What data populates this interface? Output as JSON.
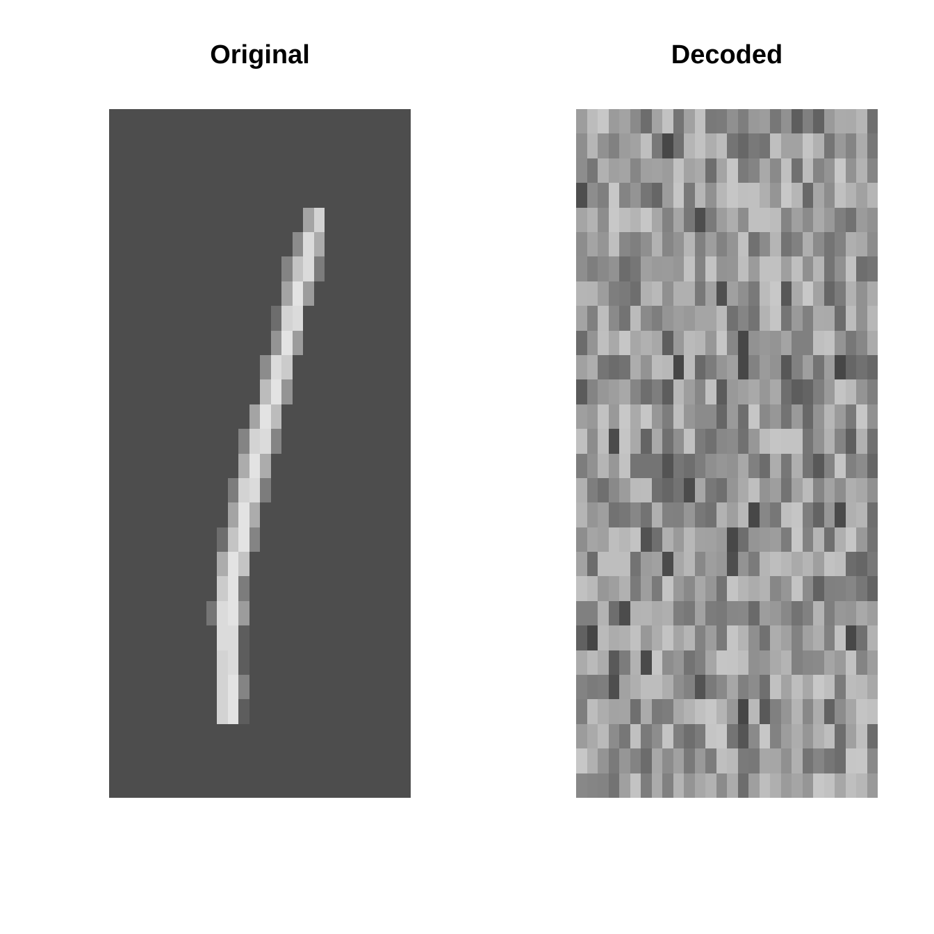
{
  "chart_data": [
    {
      "type": "heatmap",
      "title": "Original",
      "columns": 28,
      "rows": 28,
      "colorscale": "grayscale",
      "background_value": 0.0,
      "stroke": {
        "description_free_cells_by_row": [
          {
            "row": 4,
            "cells": [
              [
                18,
                0.55
              ],
              [
                19,
                0.85
              ]
            ]
          },
          {
            "row": 5,
            "cells": [
              [
                17,
                0.4
              ],
              [
                18,
                0.9
              ],
              [
                19,
                0.6
              ]
            ]
          },
          {
            "row": 6,
            "cells": [
              [
                16,
                0.35
              ],
              [
                17,
                0.75
              ],
              [
                18,
                0.9
              ],
              [
                19,
                0.3
              ]
            ]
          },
          {
            "row": 7,
            "cells": [
              [
                16,
                0.55
              ],
              [
                17,
                0.95
              ],
              [
                18,
                0.5
              ]
            ]
          },
          {
            "row": 8,
            "cells": [
              [
                15,
                0.2
              ],
              [
                16,
                0.85
              ],
              [
                17,
                0.9
              ]
            ]
          },
          {
            "row": 9,
            "cells": [
              [
                15,
                0.45
              ],
              [
                16,
                0.95
              ],
              [
                17,
                0.5
              ]
            ]
          },
          {
            "row": 10,
            "cells": [
              [
                14,
                0.4
              ],
              [
                15,
                0.9
              ],
              [
                16,
                0.8
              ]
            ]
          },
          {
            "row": 11,
            "cells": [
              [
                14,
                0.7
              ],
              [
                15,
                0.95
              ],
              [
                16,
                0.45
              ]
            ]
          },
          {
            "row": 12,
            "cells": [
              [
                13,
                0.55
              ],
              [
                14,
                0.95
              ],
              [
                15,
                0.7
              ]
            ]
          },
          {
            "row": 13,
            "cells": [
              [
                12,
                0.35
              ],
              [
                13,
                0.85
              ],
              [
                14,
                0.9
              ],
              [
                15,
                0.35
              ]
            ]
          },
          {
            "row": 14,
            "cells": [
              [
                12,
                0.6
              ],
              [
                13,
                0.95
              ],
              [
                14,
                0.6
              ]
            ]
          },
          {
            "row": 15,
            "cells": [
              [
                11,
                0.3
              ],
              [
                12,
                0.85
              ],
              [
                13,
                0.9
              ],
              [
                14,
                0.3
              ]
            ]
          },
          {
            "row": 16,
            "cells": [
              [
                11,
                0.55
              ],
              [
                12,
                0.95
              ],
              [
                13,
                0.6
              ]
            ]
          },
          {
            "row": 17,
            "cells": [
              [
                10,
                0.2
              ],
              [
                11,
                0.75
              ],
              [
                12,
                0.95
              ],
              [
                13,
                0.35
              ]
            ]
          },
          {
            "row": 18,
            "cells": [
              [
                10,
                0.6
              ],
              [
                11,
                0.95
              ],
              [
                12,
                0.75
              ]
            ]
          },
          {
            "row": 19,
            "cells": [
              [
                10,
                0.8
              ],
              [
                11,
                0.95
              ],
              [
                12,
                0.3
              ]
            ]
          },
          {
            "row": 20,
            "cells": [
              [
                9,
                0.25
              ],
              [
                10,
                0.9
              ],
              [
                11,
                0.95
              ],
              [
                12,
                0.5
              ]
            ]
          },
          {
            "row": 21,
            "cells": [
              [
                10,
                0.9
              ],
              [
                11,
                0.9
              ],
              [
                12,
                0.1
              ]
            ]
          },
          {
            "row": 22,
            "cells": [
              [
                10,
                0.85
              ],
              [
                11,
                0.9
              ],
              [
                12,
                0.1
              ]
            ]
          },
          {
            "row": 23,
            "cells": [
              [
                10,
                0.85
              ],
              [
                11,
                0.95
              ],
              [
                12,
                0.35
              ]
            ]
          },
          {
            "row": 24,
            "cells": [
              [
                10,
                0.85
              ],
              [
                11,
                0.95
              ],
              [
                12,
                0.1
              ]
            ]
          }
        ]
      },
      "colors": {
        "background": "#4d4d4d",
        "low": "#4d4d4d",
        "high": "#ebebeb"
      }
    },
    {
      "type": "heatmap",
      "title": "Decoded",
      "columns": 28,
      "rows": 28,
      "colorscale": "grayscale",
      "value_distribution": "noise",
      "noise_seed": 20240607,
      "colors": {
        "low": "#3d3d3d",
        "high": "#e6e6e6"
      }
    }
  ]
}
